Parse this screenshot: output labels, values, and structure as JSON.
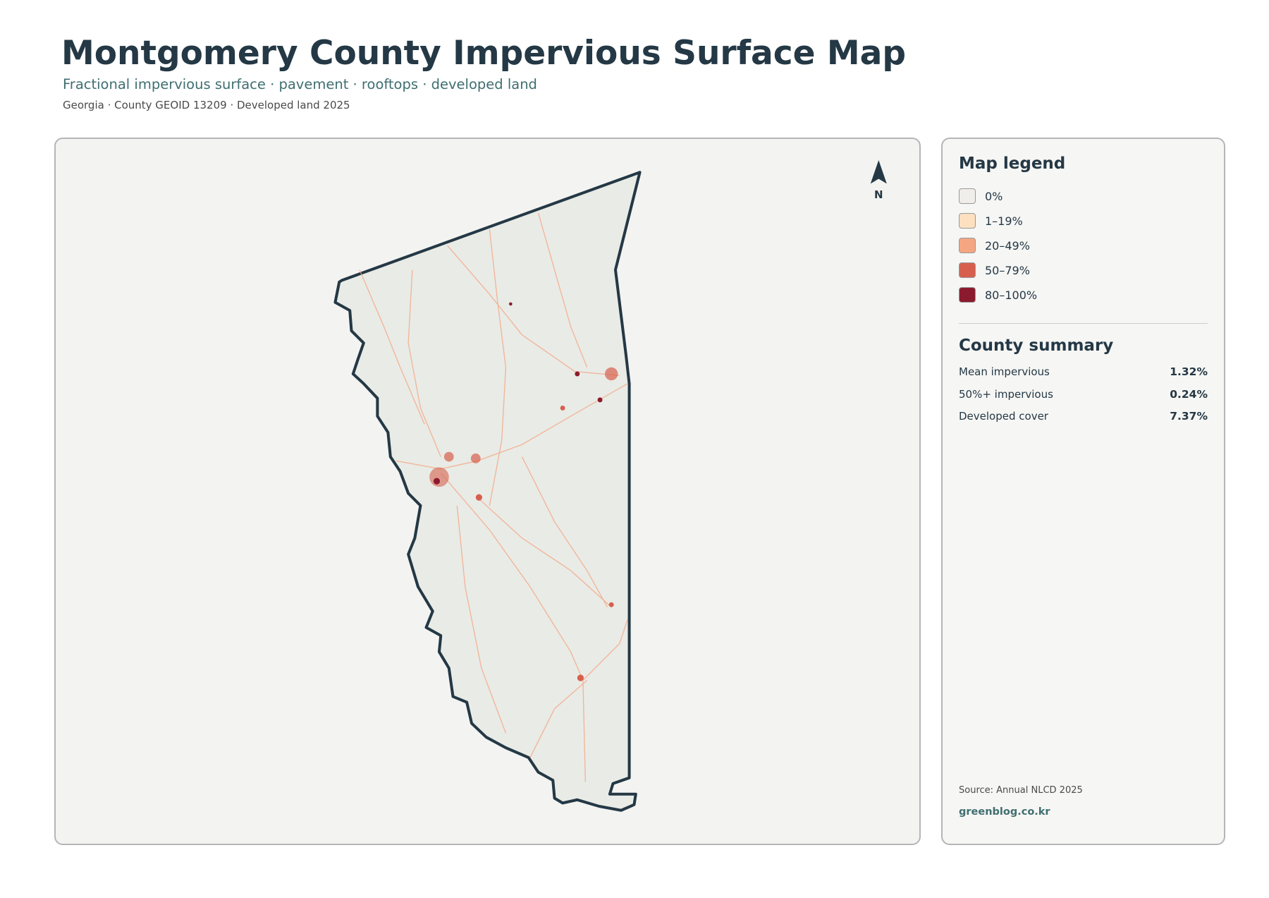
{
  "header": {
    "title": "Montgomery County Impervious Surface Map",
    "subtitle": "Fractional impervious surface · pavement · rooftops · developed land",
    "meta": "Georgia · County GEOID 13209 · Developed land 2025"
  },
  "map": {
    "north_label": "N"
  },
  "legend": {
    "title": "Map legend",
    "items": [
      {
        "label": "0%",
        "color": "#efeeea"
      },
      {
        "label": "1–19%",
        "color": "#fde0c0"
      },
      {
        "label": "20–49%",
        "color": "#f4a582"
      },
      {
        "label": "50–79%",
        "color": "#d6604d"
      },
      {
        "label": "80–100%",
        "color": "#8c1a2e"
      }
    ]
  },
  "summary": {
    "title": "County summary",
    "rows": [
      {
        "label": "Mean impervious",
        "value": "1.32%"
      },
      {
        "label": "50%+ impervious",
        "value": "0.24%"
      },
      {
        "label": "Developed cover",
        "value": "7.37%"
      }
    ]
  },
  "footer": {
    "source": "Source: Annual NLCD 2025",
    "site": "greenblog.co.kr"
  }
}
